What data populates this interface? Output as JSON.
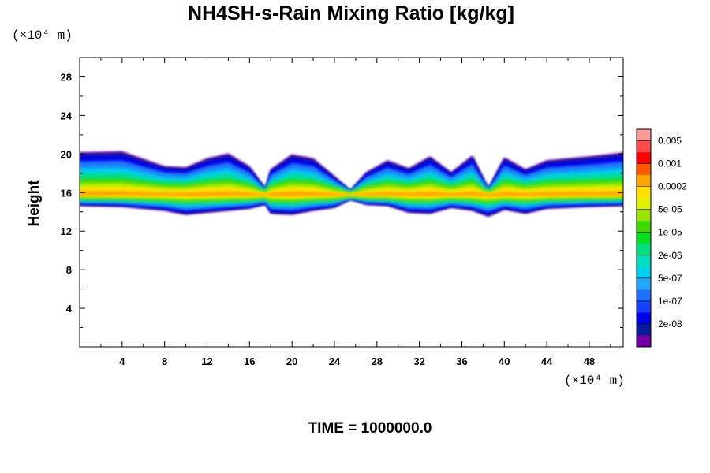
{
  "chart_data": {
    "type": "heatmap",
    "title": "NH4SH-s-Rain Mixing Ratio [kg/kg]",
    "ylabel": "Height",
    "xunit": "(×10⁴ m)",
    "yunit": "(×10⁴ m)",
    "xlim": [
      0,
      51.2
    ],
    "ylim": [
      0,
      30
    ],
    "xticks": [
      4,
      8,
      12,
      16,
      20,
      24,
      28,
      32,
      36,
      40,
      44,
      48
    ],
    "yticks": [
      4,
      8,
      12,
      16,
      20,
      24,
      28
    ],
    "footer": "TIME = 1000000.0",
    "colorbar": {
      "labels": [
        "0.005",
        "0.001",
        "0.0002",
        "5e-05",
        "1e-05",
        "2e-06",
        "5e-07",
        "1e-07",
        "2e-08"
      ],
      "colors": [
        "#ff9a9a",
        "#ff4a4a",
        "#ff0000",
        "#ff5a00",
        "#ffa500",
        "#ffe000",
        "#e0f000",
        "#9ae000",
        "#40d800",
        "#00e020",
        "#00e07a",
        "#00e0c0",
        "#00d0f0",
        "#20a8ff",
        "#2070ff",
        "#1840ff",
        "#0000e8",
        "#0a1aa0",
        "#7000a0"
      ]
    },
    "cloud_layer": {
      "base_height": 14.7,
      "top_height": 20.0,
      "peak_height": 15.8,
      "peak_value": "0.0002",
      "profile": [
        {
          "x": 0,
          "base": 14.7,
          "top": 20.0
        },
        {
          "x": 4,
          "base": 14.6,
          "top": 20.1
        },
        {
          "x": 8,
          "base": 14.2,
          "top": 18.6
        },
        {
          "x": 10,
          "base": 13.8,
          "top": 18.5
        },
        {
          "x": 12,
          "base": 14.0,
          "top": 19.4
        },
        {
          "x": 14,
          "base": 14.2,
          "top": 19.9
        },
        {
          "x": 16,
          "base": 14.4,
          "top": 18.6
        },
        {
          "x": 17.5,
          "base": 14.8,
          "top": 16.4
        },
        {
          "x": 18,
          "base": 13.9,
          "top": 18.3
        },
        {
          "x": 20,
          "base": 13.8,
          "top": 19.8
        },
        {
          "x": 22,
          "base": 14.2,
          "top": 19.4
        },
        {
          "x": 24,
          "base": 14.5,
          "top": 17.6
        },
        {
          "x": 25.5,
          "base": 15.3,
          "top": 16.2
        },
        {
          "x": 27,
          "base": 14.8,
          "top": 18.0
        },
        {
          "x": 29,
          "base": 14.7,
          "top": 19.2
        },
        {
          "x": 31,
          "base": 14.0,
          "top": 18.4
        },
        {
          "x": 33,
          "base": 13.9,
          "top": 19.6
        },
        {
          "x": 35,
          "base": 14.5,
          "top": 18.0
        },
        {
          "x": 37,
          "base": 14.2,
          "top": 19.7
        },
        {
          "x": 38.5,
          "base": 13.6,
          "top": 16.4
        },
        {
          "x": 40,
          "base": 14.3,
          "top": 19.5
        },
        {
          "x": 42,
          "base": 13.9,
          "top": 18.3
        },
        {
          "x": 44,
          "base": 14.4,
          "top": 19.2
        },
        {
          "x": 48,
          "base": 14.6,
          "top": 19.6
        },
        {
          "x": 51.2,
          "base": 14.7,
          "top": 20.0
        }
      ]
    }
  }
}
